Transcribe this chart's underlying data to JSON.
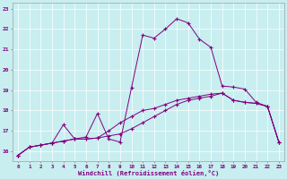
{
  "xlabel": "Windchill (Refroidissement éolien,°C)",
  "bg_color": "#c8eef0",
  "line_color": "#800080",
  "grid_color": "#ffffff",
  "x_hours": [
    0,
    1,
    2,
    3,
    4,
    5,
    6,
    7,
    8,
    9,
    10,
    11,
    12,
    13,
    14,
    15,
    16,
    17,
    18,
    19,
    20,
    21,
    22,
    23
  ],
  "line1": [
    15.8,
    16.2,
    16.3,
    16.4,
    16.5,
    16.6,
    16.6,
    16.65,
    16.75,
    16.85,
    17.1,
    17.4,
    17.7,
    18.0,
    18.3,
    18.5,
    18.6,
    18.7,
    18.85,
    18.5,
    18.4,
    18.35,
    18.2,
    16.45
  ],
  "line2": [
    15.8,
    16.2,
    16.3,
    16.4,
    17.3,
    16.6,
    16.7,
    17.85,
    16.6,
    16.45,
    19.1,
    21.7,
    21.55,
    22.0,
    22.5,
    22.3,
    21.5,
    21.1,
    19.2,
    19.15,
    19.05,
    18.4,
    18.2,
    16.45
  ],
  "line3": [
    15.8,
    16.2,
    16.3,
    16.4,
    16.5,
    16.6,
    16.6,
    16.65,
    17.0,
    17.4,
    17.7,
    18.0,
    18.1,
    18.3,
    18.5,
    18.6,
    18.7,
    18.8,
    18.85,
    18.5,
    18.4,
    18.35,
    18.2,
    16.45
  ],
  "ylim": [
    15.5,
    23.3
  ],
  "yticks": [
    16,
    17,
    18,
    19,
    20,
    21,
    22,
    23
  ],
  "xlim": [
    -0.5,
    23.5
  ],
  "figsize": [
    3.2,
    2.0
  ],
  "dpi": 100
}
